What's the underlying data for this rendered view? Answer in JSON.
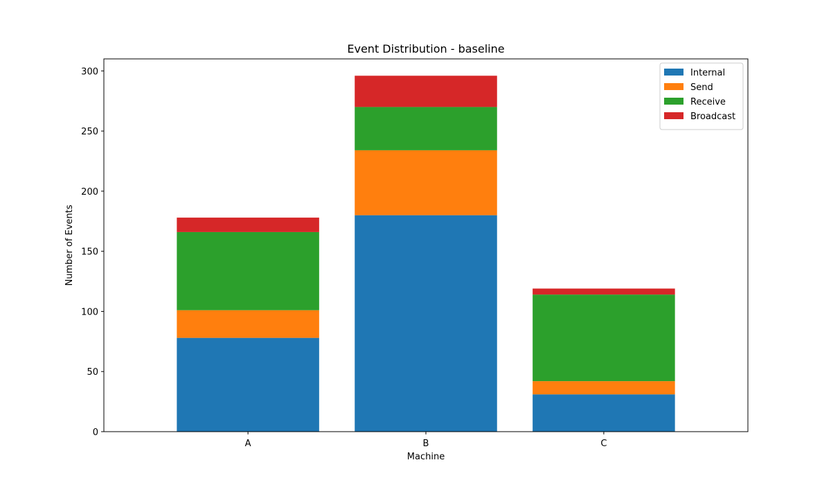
{
  "chart_data": {
    "type": "bar",
    "stacked": true,
    "title": "Event Distribution - baseline",
    "xlabel": "Machine",
    "ylabel": "Number of Events",
    "categories": [
      "A",
      "B",
      "C"
    ],
    "ylim": [
      0,
      310
    ],
    "yticks": [
      0,
      50,
      100,
      150,
      200,
      250,
      300
    ],
    "legend_position": "top-right",
    "series": [
      {
        "name": "Internal",
        "color": "#1f77b4",
        "values": [
          78,
          180,
          31
        ]
      },
      {
        "name": "Send",
        "color": "#ff7f0e",
        "values": [
          23,
          54,
          11
        ]
      },
      {
        "name": "Receive",
        "color": "#2ca02c",
        "values": [
          65,
          36,
          72
        ]
      },
      {
        "name": "Broadcast",
        "color": "#d62728",
        "values": [
          12,
          26,
          5
        ]
      }
    ]
  }
}
